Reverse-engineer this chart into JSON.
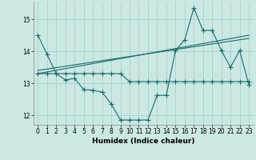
{
  "xlabel": "Humidex (Indice chaleur)",
  "background_color": "#cce8e4",
  "grid_color": "#aad4d0",
  "line_color": "#1a6b6b",
  "xlim": [
    -0.5,
    23.5
  ],
  "ylim": [
    11.7,
    15.55
  ],
  "yticks": [
    12,
    13,
    14,
    15
  ],
  "xticks": [
    0,
    1,
    2,
    3,
    4,
    5,
    6,
    7,
    8,
    9,
    10,
    11,
    12,
    13,
    14,
    15,
    16,
    17,
    18,
    19,
    20,
    21,
    22,
    23
  ],
  "series1_x": [
    0,
    1,
    2,
    3,
    4,
    5,
    6,
    7,
    8,
    9,
    10,
    11,
    12,
    13,
    14,
    15,
    16,
    17,
    18,
    19,
    20,
    21,
    22,
    23
  ],
  "series1_y": [
    14.5,
    13.9,
    13.3,
    13.1,
    13.15,
    12.8,
    12.78,
    12.72,
    12.35,
    11.85,
    11.85,
    11.85,
    11.85,
    12.62,
    12.62,
    14.02,
    14.35,
    15.35,
    14.65,
    14.65,
    14.02,
    13.5,
    14.02,
    12.95
  ],
  "series2_x": [
    0,
    1,
    2,
    3,
    4,
    5,
    6,
    7,
    8,
    9,
    10,
    11,
    12,
    13,
    14,
    15,
    16,
    17,
    18,
    19,
    20,
    21,
    22,
    23
  ],
  "series2_y": [
    13.3,
    13.3,
    13.3,
    13.3,
    13.3,
    13.3,
    13.3,
    13.3,
    13.3,
    13.3,
    13.05,
    13.05,
    13.05,
    13.05,
    13.05,
    13.05,
    13.05,
    13.05,
    13.05,
    13.05,
    13.05,
    13.05,
    13.05,
    13.05
  ],
  "series3_x": [
    0,
    23
  ],
  "series3_y": [
    13.3,
    14.5
  ],
  "series4_x": [
    0,
    23
  ],
  "series4_y": [
    13.4,
    14.4
  ]
}
